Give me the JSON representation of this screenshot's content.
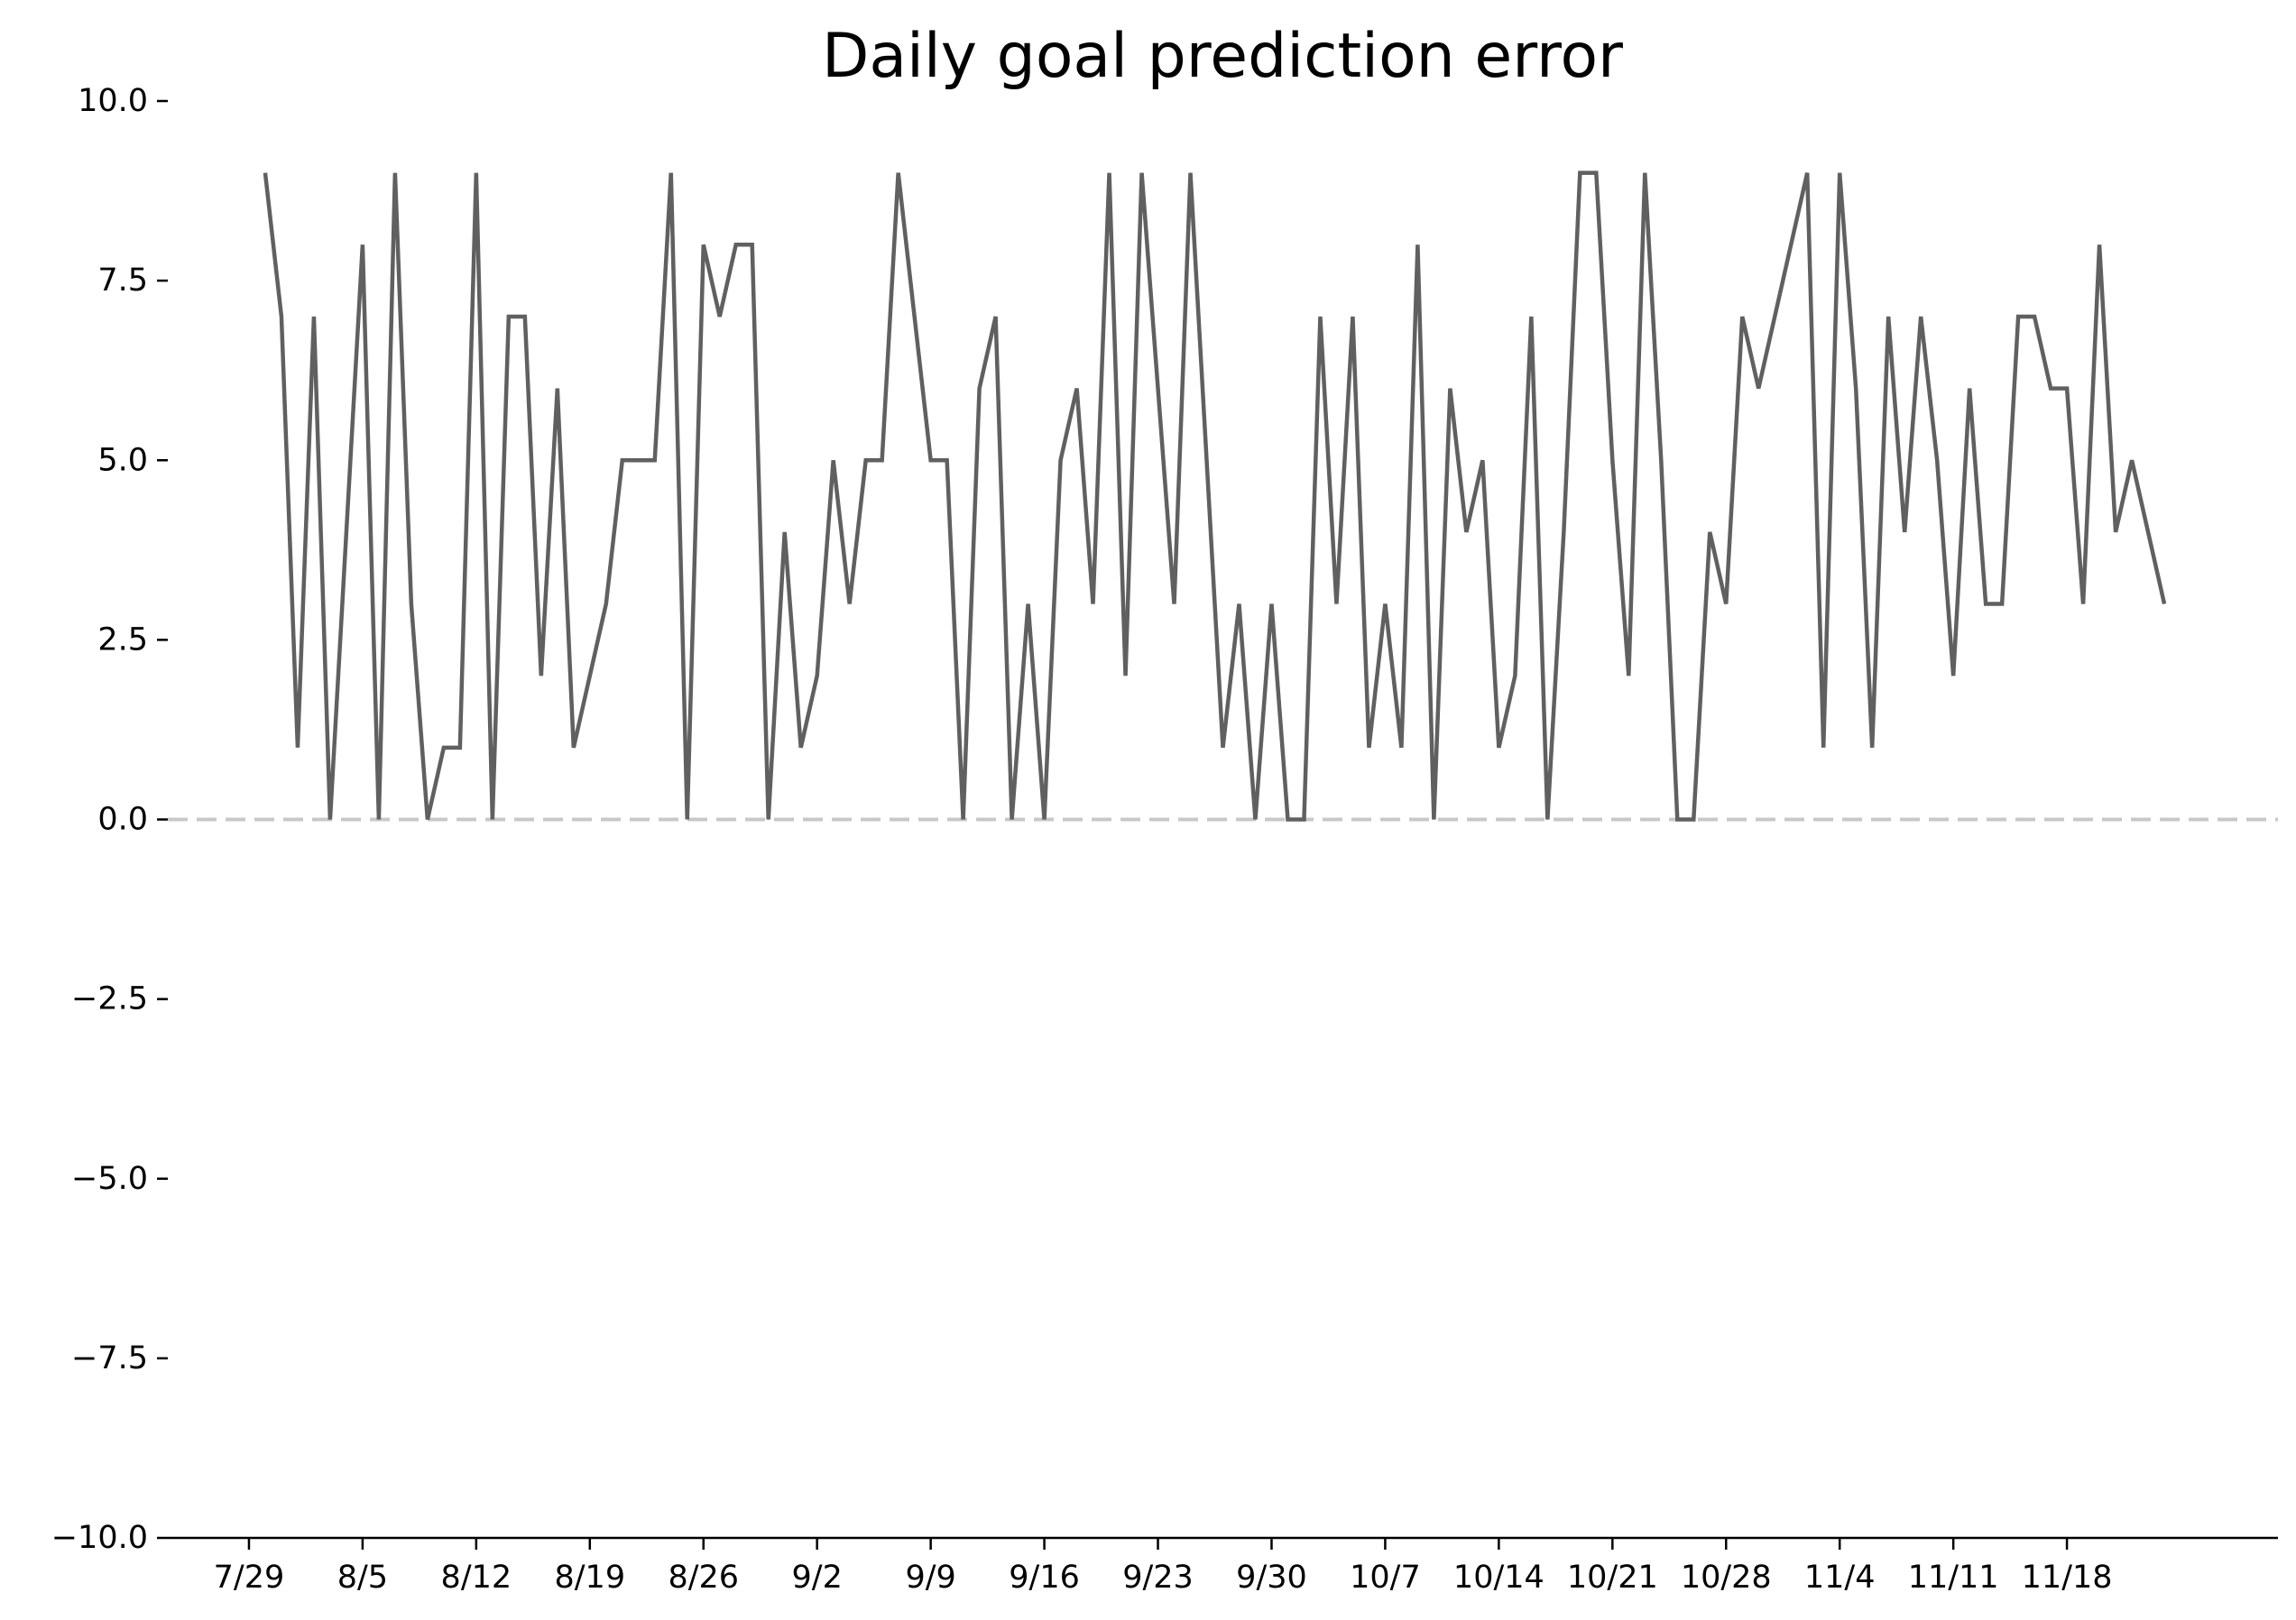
{
  "chart_data": {
    "type": "line",
    "title": "Daily goal prediction error",
    "xlabel": "",
    "ylabel": "",
    "ylim": [
      -10,
      10
    ],
    "yticks": [
      {
        "value": 10,
        "label": "10.0"
      },
      {
        "value": 7.5,
        "label": "7.5"
      },
      {
        "value": 5,
        "label": "5.0"
      },
      {
        "value": 2.5,
        "label": "2.5"
      },
      {
        "value": 0,
        "label": "0.0"
      },
      {
        "value": -2.5,
        "label": "−2.5"
      },
      {
        "value": -5,
        "label": "−5.0"
      },
      {
        "value": -7.5,
        "label": "−7.5"
      },
      {
        "value": -10,
        "label": "−10.0"
      }
    ],
    "xticks": [
      {
        "date": "2019-07-29",
        "label": "7/29"
      },
      {
        "date": "2019-08-05",
        "label": "8/5"
      },
      {
        "date": "2019-08-12",
        "label": "8/12"
      },
      {
        "date": "2019-08-19",
        "label": "8/19"
      },
      {
        "date": "2019-08-26",
        "label": "8/26"
      },
      {
        "date": "2019-09-02",
        "label": "9/2"
      },
      {
        "date": "2019-09-09",
        "label": "9/9"
      },
      {
        "date": "2019-09-16",
        "label": "9/16"
      },
      {
        "date": "2019-09-23",
        "label": "9/23"
      },
      {
        "date": "2019-09-30",
        "label": "9/30"
      },
      {
        "date": "2019-10-07",
        "label": "10/7"
      },
      {
        "date": "2019-10-14",
        "label": "10/14"
      },
      {
        "date": "2019-10-21",
        "label": "10/21"
      },
      {
        "date": "2019-10-28",
        "label": "10/28"
      },
      {
        "date": "2019-11-04",
        "label": "11/4"
      },
      {
        "date": "2019-11-11",
        "label": "11/11"
      },
      {
        "date": "2019-11-18",
        "label": "11/18"
      }
    ],
    "xlim": [
      "2019-07-24",
      "2019-12-01"
    ],
    "reference_line": {
      "y": 0,
      "style": "dashed",
      "color": "#c8c8c8"
    },
    "grid": false,
    "series": [
      {
        "color": "#606060",
        "x_start": "2019-07-30",
        "x_step_days": 1,
        "values": [
          9,
          7,
          1,
          7,
          0,
          4,
          8,
          0,
          9,
          3,
          0,
          1,
          1,
          9,
          0,
          7,
          7,
          2,
          6,
          1,
          2,
          3,
          5,
          5,
          5,
          9,
          0,
          8,
          7,
          8,
          8,
          0,
          4,
          1,
          2,
          5,
          3,
          5,
          5,
          9,
          7,
          5,
          5,
          0,
          6,
          7,
          0,
          3,
          0,
          5,
          6,
          3,
          9,
          2,
          9,
          6,
          3,
          9,
          5,
          1,
          3,
          0,
          3,
          0,
          0,
          7,
          3,
          7,
          1,
          3,
          1,
          8,
          0,
          6,
          4,
          5,
          1,
          2,
          7,
          0,
          4,
          9,
          9,
          5,
          2,
          9,
          5,
          0,
          0,
          4,
          3,
          7,
          6,
          7,
          8,
          9,
          1,
          9,
          6,
          1,
          7,
          4,
          7,
          5,
          2,
          6,
          3,
          3,
          7,
          7,
          6,
          6,
          3,
          8,
          4,
          5,
          4,
          3
        ]
      }
    ]
  }
}
